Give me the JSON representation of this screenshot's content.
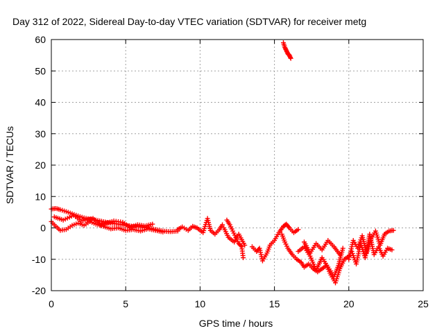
{
  "chart_data": {
    "type": "scatter",
    "title": "Day 312 of 2022, Sidereal Day-to-day VTEC variation (SDTVAR) for receiver metg",
    "xlabel": "GPS time / hours",
    "ylabel": "SDTVAR / TECUs",
    "xlim": [
      0,
      25
    ],
    "ylim": [
      -20,
      60
    ],
    "xticks": [
      0,
      5,
      10,
      15,
      20,
      25
    ],
    "yticks": [
      -20,
      -10,
      0,
      10,
      20,
      30,
      40,
      50,
      60
    ],
    "grid": true,
    "marker": "+",
    "color": "#ff0000",
    "series": [
      {
        "name": "SDTVAR",
        "segments": [
          {
            "x": [
              0.0,
              0.3,
              0.6,
              1.0,
              1.4,
              1.8,
              2.2,
              2.6,
              3.0,
              3.5,
              4.0,
              4.5,
              5.0,
              5.5,
              6.0,
              6.5,
              7.0,
              7.5,
              8.0,
              8.5
            ],
            "y": [
              6.0,
              6.2,
              5.8,
              5.2,
              4.5,
              3.8,
              3.2,
              2.8,
              2.5,
              2.0,
              1.5,
              1.2,
              0.8,
              0.5,
              0.3,
              0.0,
              -0.5,
              -1.0,
              -1.2,
              -1.0
            ]
          },
          {
            "x": [
              0.0,
              0.3,
              0.6,
              1.0,
              1.4,
              1.8,
              2.2,
              2.6,
              3.0,
              3.5,
              4.0,
              4.5,
              5.0,
              5.5,
              6.0,
              6.5,
              7.0,
              7.5
            ],
            "y": [
              2.0,
              0.5,
              -0.8,
              -0.5,
              0.8,
              1.5,
              0.8,
              2.0,
              1.2,
              0.5,
              -0.3,
              0.0,
              -0.8,
              -0.5,
              -1.0,
              -0.3,
              -0.8,
              -1.3
            ]
          },
          {
            "x": [
              0.2,
              0.8,
              1.5,
              2.0,
              2.8,
              3.3,
              4.2,
              4.8,
              5.3,
              5.8,
              6.3,
              6.8
            ],
            "y": [
              3.5,
              2.5,
              4.0,
              2.2,
              3.0,
              1.0,
              2.2,
              1.8,
              0.2,
              1.0,
              0.6,
              1.2
            ]
          },
          {
            "x": [
              8.5,
              8.8,
              9.2,
              9.5,
              9.8,
              10.2,
              10.5,
              10.7,
              11.0,
              11.3,
              11.5
            ],
            "y": [
              -0.5,
              0.3,
              -0.8,
              0.5,
              0.0,
              -1.5,
              3.0,
              -0.8,
              -2.0,
              -0.5,
              1.0
            ]
          },
          {
            "x": [
              11.8,
              12.0,
              12.2,
              12.4,
              12.6,
              12.8,
              12.9
            ],
            "y": [
              2.5,
              1.0,
              -1.0,
              -3.0,
              -5.0,
              -6.0,
              -9.5
            ]
          },
          {
            "x": [
              11.6,
              11.9,
              12.3,
              12.6,
              13.0
            ],
            "y": [
              0.0,
              -3.0,
              -4.5,
              -2.0,
              -5.5
            ]
          },
          {
            "x": [
              13.5,
              13.8,
              14.0,
              14.2,
              14.5,
              14.7,
              15.0,
              15.3,
              15.6,
              15.8,
              16.0,
              16.3,
              16.6
            ],
            "y": [
              -6.0,
              -7.5,
              -6.5,
              -10.5,
              -8.0,
              -5.5,
              -4.0,
              -1.5,
              0.5,
              1.2,
              0.0,
              -1.5,
              -0.5
            ]
          },
          {
            "x": [
              15.6,
              15.7,
              15.8,
              15.9,
              16.0,
              16.1
            ],
            "y": [
              59.0,
              57.5,
              56.5,
              55.5,
              55.0,
              54.0
            ]
          },
          {
            "x": [
              15.5,
              15.7,
              15.9,
              16.2,
              16.5,
              16.8,
              17.0,
              17.3,
              17.6,
              17.9,
              18.2,
              18.5,
              18.8,
              19.1,
              19.4,
              19.7,
              20.0
            ],
            "y": [
              -2.0,
              -4.5,
              -6.5,
              -8.5,
              -10.0,
              -11.0,
              -12.5,
              -11.5,
              -13.0,
              -14.0,
              -13.0,
              -12.0,
              -15.0,
              -17.5,
              -13.0,
              -10.0,
              -9.0
            ]
          },
          {
            "x": [
              16.6,
              17.0,
              17.4,
              17.8,
              18.2,
              18.6,
              19.0,
              19.3,
              19.6
            ],
            "y": [
              -7.5,
              -6.0,
              -9.0,
              -13.5,
              -9.5,
              -12.5,
              -15.5,
              -12.0,
              -6.5
            ]
          },
          {
            "x": [
              17.0,
              17.4,
              17.8,
              18.2,
              18.6,
              19.0,
              19.4
            ],
            "y": [
              -4.5,
              -8.0,
              -5.0,
              -7.0,
              -4.0,
              -6.0,
              -8.5
            ]
          },
          {
            "x": [
              20.0,
              20.3,
              20.6,
              20.9,
              21.2,
              21.5,
              21.8,
              22.1,
              22.4,
              22.7,
              23.0
            ],
            "y": [
              -10.0,
              -4.0,
              -6.5,
              -2.5,
              -8.0,
              -3.5,
              -1.0,
              -5.5,
              -2.0,
              -1.0,
              -0.8
            ]
          },
          {
            "x": [
              20.2,
              20.5,
              20.8,
              21.1,
              21.4,
              21.7,
              22.0,
              22.3,
              22.6,
              22.9
            ],
            "y": [
              -7.5,
              -11.5,
              -5.0,
              -9.5,
              -2.0,
              -8.5,
              -6.0,
              -9.0,
              -6.5,
              -7.0
            ]
          }
        ]
      }
    ]
  }
}
